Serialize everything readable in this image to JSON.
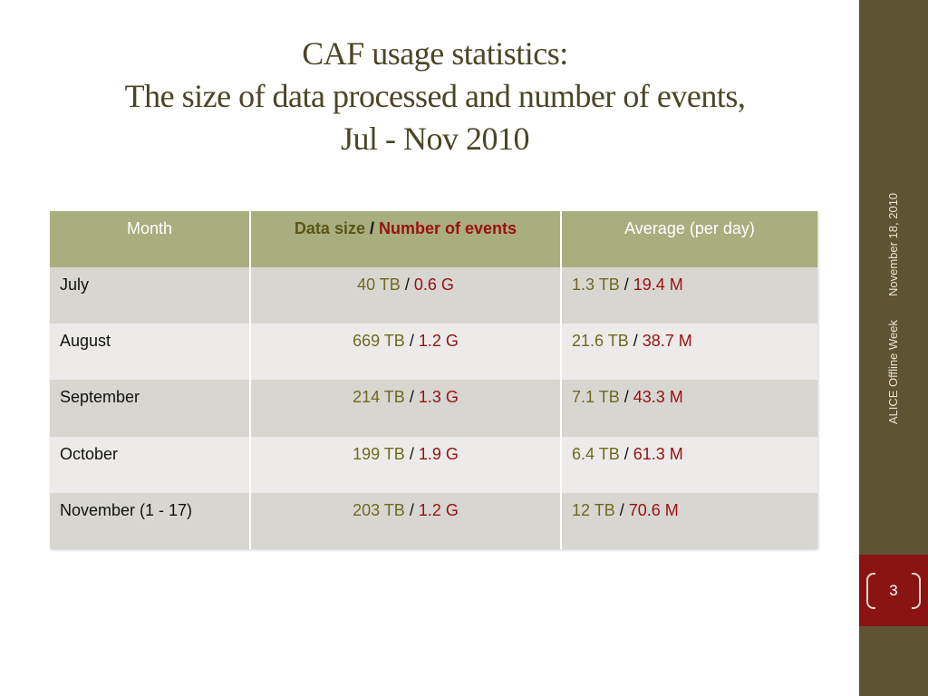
{
  "title": {
    "line1": "CAF usage statistics:",
    "line2": "The size of data processed and number of events,",
    "line3": "Jul - Nov 2010"
  },
  "table": {
    "headers": {
      "month": "Month",
      "data_size": "Data size",
      "separator": "/",
      "events": "Number of events",
      "average": "Average (per day)"
    },
    "rows": [
      {
        "month": "July",
        "size": "40 TB",
        "events": "0.6 G",
        "avg_size": "1.3 TB",
        "avg_events": "19.4 M"
      },
      {
        "month": "August",
        "size": "669 TB",
        "events": "1.2 G",
        "avg_size": "21.6 TB",
        "avg_events": "38.7 M"
      },
      {
        "month": "September",
        "size": "214 TB",
        "events": "1.3 G",
        "avg_size": "7.1 TB",
        "avg_events": "43.3 M"
      },
      {
        "month": "October",
        "size": "199 TB",
        "events": "1.9 G",
        "avg_size": "6.4 TB",
        "avg_events": "61.3 M"
      },
      {
        "month": "November (1 - 17)",
        "size": "203 TB",
        "events": "1.2 G",
        "avg_size": "12 TB",
        "avg_events": "70.6 M"
      }
    ]
  },
  "sidebar": {
    "footer_text": "ALICE Offline Week",
    "date": "November 18, 2010",
    "page_number": "3"
  },
  "colors": {
    "title": "#4a4626",
    "header_bg": "#a9ae7e",
    "row_dark": "#d7d6d1",
    "row_light": "#ecebe9",
    "olive_text": "#6e6a1e",
    "red_text": "#9a1010",
    "sidebar_bg": "#5e5333",
    "page_box_bg": "#8a1414"
  }
}
